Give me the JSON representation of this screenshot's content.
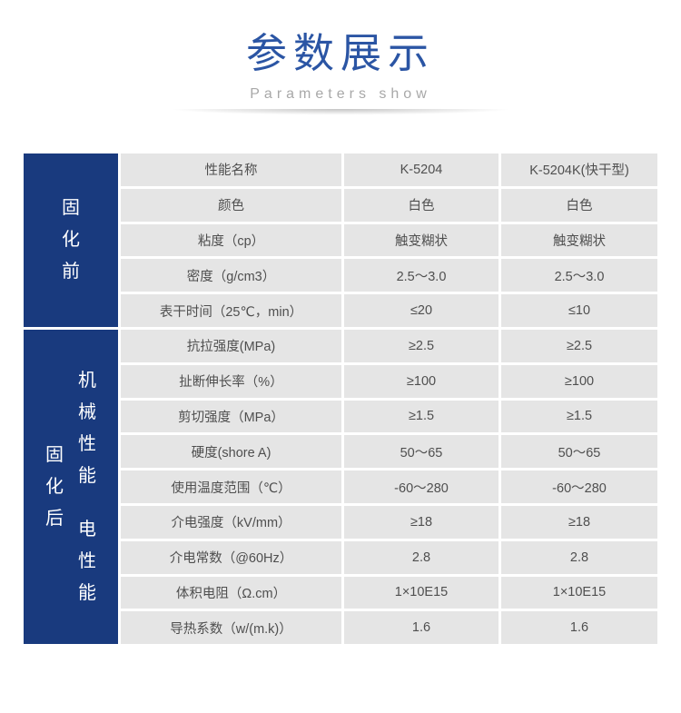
{
  "header": {
    "title": "参数展示",
    "subtitle": "Parameters show"
  },
  "sidebar": {
    "pre_cure": "固化前",
    "post_cure": "固化后",
    "mechanical": "机械性能",
    "electrical": "电性能"
  },
  "table": {
    "columns": [
      "性能名称",
      "K-5204",
      "K-5204K(快干型)"
    ],
    "rows": [
      {
        "label": "颜色",
        "v1": "白色",
        "v2": "白色"
      },
      {
        "label": "粘度（cp）",
        "v1": "触变糊状",
        "v2": "触变糊状"
      },
      {
        "label": "密度（g/cm3）",
        "v1": "2.5～3.0",
        "v2": "2.5～3.0"
      },
      {
        "label": "表干时间（25℃，min）",
        "v1": "≤20",
        "v2": "≤10"
      },
      {
        "label": "抗拉强度(MPa)",
        "v1": "≥2.5",
        "v2": "≥2.5"
      },
      {
        "label": "扯断伸长率（%）",
        "v1": "≥100",
        "v2": "≥100"
      },
      {
        "label": "剪切强度（MPa）",
        "v1": "≥1.5",
        "v2": "≥1.5"
      },
      {
        "label": "硬度(shore A)",
        "v1": "50～65",
        "v2": "50～65"
      },
      {
        "label": "使用温度范围（℃）",
        "v1": "-60～280",
        "v2": "-60～280"
      },
      {
        "label": "介电强度（kV/mm）",
        "v1": "≥18",
        "v2": "≥18"
      },
      {
        "label": "介电常数（@60Hz）",
        "v1": "2.8",
        "v2": "2.8"
      },
      {
        "label": "体积电阻（Ω.cm）",
        "v1": "1×10E15",
        "v2": "1×10E15"
      },
      {
        "label": "导热系数（w/(m.k)）",
        "v1": "1.6",
        "v2": "1.6"
      }
    ]
  },
  "colors": {
    "title_blue": "#2b55a4",
    "sidebar_blue": "#193a7e",
    "cell_bg": "#e5e5e5",
    "cell_text": "#4f4f4f",
    "subtitle_gray": "#a8a8a8"
  }
}
